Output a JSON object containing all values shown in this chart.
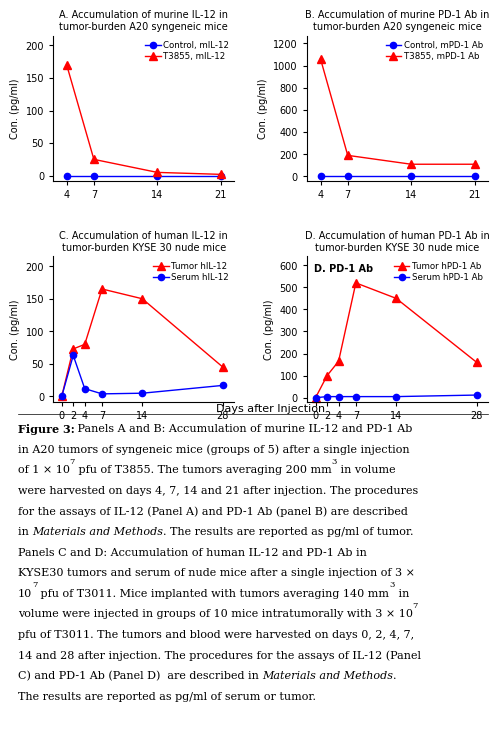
{
  "panelA": {
    "title": "A. Accumulation of murine IL-12 in\ntumor-burden A20 syngeneic mice",
    "xdata": [
      4,
      7,
      14,
      21
    ],
    "control": [
      0,
      0,
      0,
      0
    ],
    "t3855": [
      170,
      25,
      5,
      2
    ],
    "ylabel": "Con. (pg/ml)",
    "yticks": [
      0,
      50,
      100,
      150,
      200
    ],
    "ylim": [
      -8,
      215
    ],
    "xticks": [
      4,
      7,
      14,
      21
    ],
    "xlim": [
      2.5,
      22.5
    ],
    "legend1": "Control, mIL-12",
    "legend2": "T3855, mIL-12"
  },
  "panelB": {
    "title": "B. Accumulation of murine PD-1 Ab in\ntumor-burden A20 syngeneic mice",
    "xdata": [
      4,
      7,
      14,
      21
    ],
    "control": [
      0,
      0,
      0,
      0
    ],
    "t3855": [
      1060,
      190,
      110,
      110
    ],
    "ylabel": "Con. (pg/ml)",
    "yticks": [
      0,
      200,
      400,
      600,
      800,
      1000,
      1200
    ],
    "ylim": [
      -40,
      1270
    ],
    "xticks": [
      4,
      7,
      14,
      21
    ],
    "xlim": [
      2.5,
      22.5
    ],
    "legend1": "Control, mPD-1 Ab",
    "legend2": "T3855, mPD-1 Ab"
  },
  "panelC": {
    "title": "C. Accumulation of human IL-12 in\ntumor-burden KYSE 30 nude mice",
    "xdata": [
      0,
      2,
      4,
      7,
      14,
      28
    ],
    "tumor": [
      0,
      73,
      80,
      165,
      150,
      45
    ],
    "serum": [
      0,
      63,
      12,
      4,
      5,
      17
    ],
    "ylabel": "Con. (pg/ml)",
    "yticks": [
      0,
      50,
      100,
      150,
      200
    ],
    "ylim": [
      -8,
      215
    ],
    "xticks": [
      0,
      2,
      4,
      7,
      14,
      28
    ],
    "xlim": [
      -1.5,
      30
    ],
    "legend1": "Tumor hIL-12",
    "legend2": "Serum hIL-12"
  },
  "panelD": {
    "title": "D. Accumulation of human PD-1 Ab in\ntumor-burden KYSE 30 nude mice",
    "xdata": [
      0,
      2,
      4,
      7,
      14,
      28
    ],
    "tumor": [
      0,
      100,
      165,
      520,
      450,
      160
    ],
    "serum": [
      0,
      5,
      5,
      5,
      5,
      12
    ],
    "ylabel": "Con. (pg/ml)",
    "yticks": [
      0,
      100,
      200,
      300,
      400,
      500,
      600
    ],
    "ylim": [
      -18,
      640
    ],
    "xticks": [
      0,
      2,
      4,
      7,
      14,
      28
    ],
    "xlim": [
      -1.5,
      30
    ],
    "legend1": "Tumor hPD-1 Ab",
    "legend2": "Serum hPD-1 Ab",
    "annotation": "D. PD-1 Ab"
  },
  "colors": {
    "red": "#FF0000",
    "blue": "#0000FF"
  },
  "xlabel": "Days after Injection"
}
